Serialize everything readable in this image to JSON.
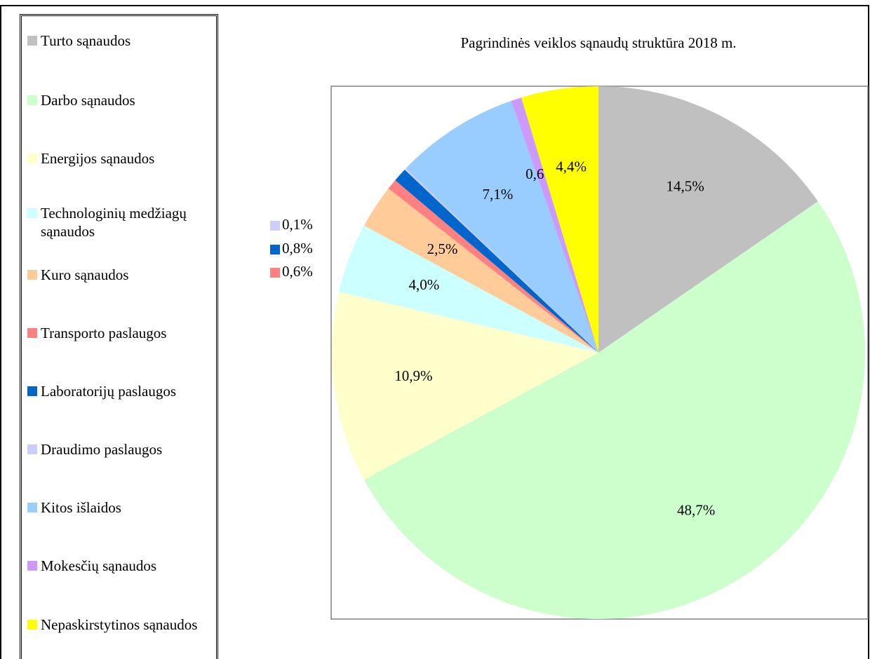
{
  "chart_data": {
    "type": "pie",
    "title": "Pagrindinės veiklos sąnaudų struktūra 2018 m.",
    "categories": [
      "Turto sąnaudos",
      "Darbo sąnaudos",
      "Energijos sąnaudos",
      "Technologinių medžiagų sąnaudos",
      "Kuro sąnaudos",
      "Transporto paslaugos",
      "Laboratorijų paslaugos",
      "Draudimo paslaugos",
      "Kitos išlaidos",
      "Mokesčių sąnaudos",
      "Nepaskirstytinos sąnaudos"
    ],
    "values": [
      14.5,
      48.7,
      10.9,
      4.0,
      2.5,
      0.6,
      0.8,
      0.1,
      7.1,
      0.6,
      4.4
    ],
    "value_labels": [
      "14,5%",
      "48,7%",
      "10,9%",
      "4,0%",
      "2,5%",
      "0,6%",
      "0,8%",
      "0,1%",
      "7,1%",
      "0,6%",
      "4,4%"
    ],
    "colors": [
      "#c0c0c0",
      "#ccffcc",
      "#ffffcc",
      "#ccffff",
      "#ffcc99",
      "#ff8080",
      "#0066cc",
      "#ccccff",
      "#99ccff",
      "#cc99ff",
      "#ffff00"
    ],
    "legend": "left"
  }
}
